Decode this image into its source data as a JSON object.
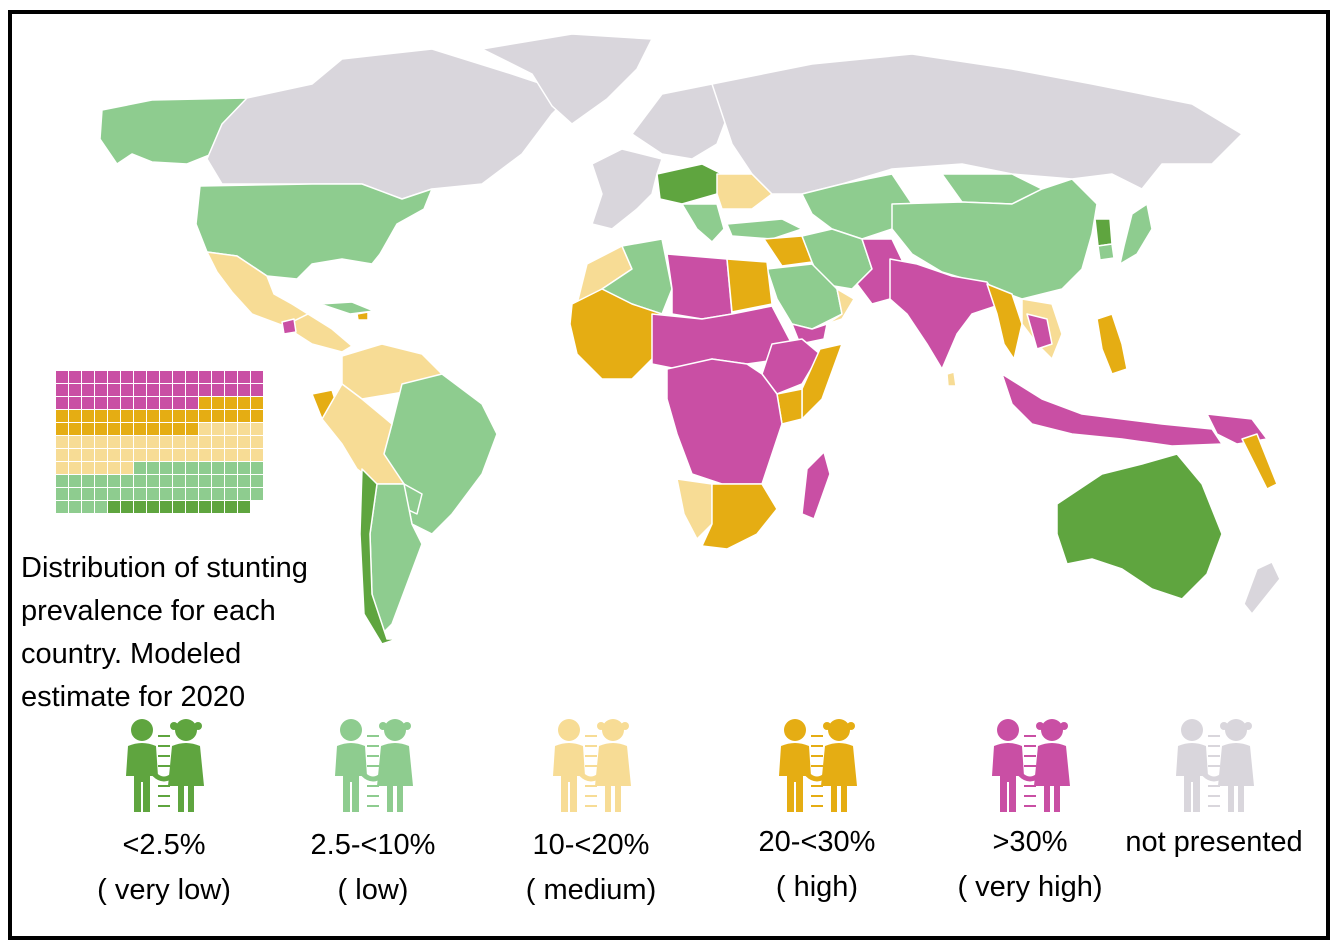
{
  "colors": {
    "very_low": "#5fa53f",
    "low": "#8ecc8f",
    "medium": "#f7dc95",
    "high": "#e5ad13",
    "very_high": "#c94fa4",
    "not_presented": "#d9d6dc",
    "ocean": "#ffffff"
  },
  "caption": {
    "line1": "Distribution of stunting",
    "line2": "prevalence for each",
    "line3": "country. Modeled",
    "line4": "estimate for 2020"
  },
  "legend": [
    {
      "range": "<2.5%",
      "level": "( very low)",
      "color": "#5fa53f",
      "icon": "children-icon"
    },
    {
      "range": "2.5-<10%",
      "level": "( low)",
      "color": "#8ecc8f",
      "icon": "children-icon"
    },
    {
      "range": "10-<20%",
      "level": "( medium)",
      "color": "#f7dc95",
      "icon": "children-icon"
    },
    {
      "range": "20-<30%",
      "level": "( high)",
      "color": "#e5ad13",
      "icon": "children-icon"
    },
    {
      "range": ">30%",
      "level": "( very high)",
      "color": "#c94fa4",
      "icon": "children-icon"
    },
    {
      "range": "not presented",
      "level": "",
      "color": "#d9d6dc",
      "icon": "children-icon"
    }
  ],
  "waffle": {
    "rows": [
      [
        "very_high",
        "very_high",
        "very_high",
        "very_high",
        "very_high",
        "very_high",
        "very_high",
        "very_high",
        "very_high",
        "very_high",
        "very_high",
        "very_high",
        "very_high",
        "very_high",
        "very_high",
        "very_high"
      ],
      [
        "very_high",
        "very_high",
        "very_high",
        "very_high",
        "very_high",
        "very_high",
        "very_high",
        "very_high",
        "very_high",
        "very_high",
        "very_high",
        "very_high",
        "very_high",
        "very_high",
        "very_high",
        "very_high"
      ],
      [
        "very_high",
        "very_high",
        "very_high",
        "very_high",
        "very_high",
        "very_high",
        "very_high",
        "very_high",
        "very_high",
        "very_high",
        "very_high",
        "high",
        "high",
        "high",
        "high",
        "high"
      ],
      [
        "high",
        "high",
        "high",
        "high",
        "high",
        "high",
        "high",
        "high",
        "high",
        "high",
        "high",
        "high",
        "high",
        "high",
        "high",
        "high"
      ],
      [
        "high",
        "high",
        "high",
        "high",
        "high",
        "high",
        "high",
        "high",
        "high",
        "high",
        "high",
        "medium",
        "medium",
        "medium",
        "medium",
        "medium"
      ],
      [
        "medium",
        "medium",
        "medium",
        "medium",
        "medium",
        "medium",
        "medium",
        "medium",
        "medium",
        "medium",
        "medium",
        "medium",
        "medium",
        "medium",
        "medium",
        "medium"
      ],
      [
        "medium",
        "medium",
        "medium",
        "medium",
        "medium",
        "medium",
        "medium",
        "medium",
        "medium",
        "medium",
        "medium",
        "medium",
        "medium",
        "medium",
        "medium",
        "medium"
      ],
      [
        "medium",
        "medium",
        "medium",
        "medium",
        "medium",
        "medium",
        "low",
        "low",
        "low",
        "low",
        "low",
        "low",
        "low",
        "low",
        "low",
        "low"
      ],
      [
        "low",
        "low",
        "low",
        "low",
        "low",
        "low",
        "low",
        "low",
        "low",
        "low",
        "low",
        "low",
        "low",
        "low",
        "low",
        "low"
      ],
      [
        "low",
        "low",
        "low",
        "low",
        "low",
        "low",
        "low",
        "low",
        "low",
        "low",
        "low",
        "low",
        "low",
        "low",
        "low",
        "low"
      ],
      [
        "low",
        "low",
        "low",
        "low",
        "very_low",
        "very_low",
        "very_low",
        "very_low",
        "very_low",
        "very_low",
        "very_low",
        "very_low",
        "very_low",
        "very_low",
        "very_low",
        ""
      ]
    ]
  },
  "regions": [
    {
      "name": "alaska",
      "level": "low"
    },
    {
      "name": "canada",
      "level": "not_presented"
    },
    {
      "name": "greenland",
      "level": "not_presented"
    },
    {
      "name": "usa",
      "level": "low"
    },
    {
      "name": "mexico",
      "level": "medium"
    },
    {
      "name": "central-america",
      "level": "medium"
    },
    {
      "name": "guatemala",
      "level": "very_high"
    },
    {
      "name": "cuba",
      "level": "low"
    },
    {
      "name": "haiti",
      "level": "high"
    },
    {
      "name": "south-america-north",
      "level": "medium"
    },
    {
      "name": "ecuador",
      "level": "high"
    },
    {
      "name": "brazil",
      "level": "low"
    },
    {
      "name": "peru-bolivia",
      "level": "medium"
    },
    {
      "name": "paraguay",
      "level": "low"
    },
    {
      "name": "argentina",
      "level": "low"
    },
    {
      "name": "chile",
      "level": "very_low"
    },
    {
      "name": "western-europe",
      "level": "not_presented"
    },
    {
      "name": "poland-germany",
      "level": "very_low"
    },
    {
      "name": "eastern-europe",
      "level": "medium"
    },
    {
      "name": "balkans",
      "level": "low"
    },
    {
      "name": "russia",
      "level": "not_presented"
    },
    {
      "name": "scandinavia",
      "level": "not_presented"
    },
    {
      "name": "turkey",
      "level": "low"
    },
    {
      "name": "central-asia",
      "level": "low"
    },
    {
      "name": "china",
      "level": "low"
    },
    {
      "name": "mongolia",
      "level": "low"
    },
    {
      "name": "korea",
      "level": "low"
    },
    {
      "name": "north-korea",
      "level": "very_low"
    },
    {
      "name": "japan",
      "level": "low"
    },
    {
      "name": "iran",
      "level": "low"
    },
    {
      "name": "saudi-arabia",
      "level": "low"
    },
    {
      "name": "iraq-syria",
      "level": "high"
    },
    {
      "name": "yemen",
      "level": "very_high"
    },
    {
      "name": "oman",
      "level": "medium"
    },
    {
      "name": "afghanistan-pakistan",
      "level": "very_high"
    },
    {
      "name": "india",
      "level": "very_high"
    },
    {
      "name": "myanmar-thailand",
      "level": "high"
    },
    {
      "name": "indochina",
      "level": "medium"
    },
    {
      "name": "laos-cambodia",
      "level": "very_high"
    },
    {
      "name": "philippines",
      "level": "high"
    },
    {
      "name": "indonesia",
      "level": "very_high"
    },
    {
      "name": "png",
      "level": "very_high"
    },
    {
      "name": "australia",
      "level": "very_low"
    },
    {
      "name": "new-zealand",
      "level": "not_presented"
    },
    {
      "name": "pacific-islands",
      "level": "high"
    },
    {
      "name": "morocco",
      "level": "medium"
    },
    {
      "name": "algeria",
      "level": "low"
    },
    {
      "name": "libya",
      "level": "very_high"
    },
    {
      "name": "egypt",
      "level": "high"
    },
    {
      "name": "west-africa",
      "level": "high"
    },
    {
      "name": "sahel",
      "level": "very_high"
    },
    {
      "name": "central-africa",
      "level": "very_high"
    },
    {
      "name": "east-africa",
      "level": "very_high"
    },
    {
      "name": "somalia",
      "level": "high"
    },
    {
      "name": "kenya",
      "level": "high"
    },
    {
      "name": "southern-africa",
      "level": "high"
    },
    {
      "name": "namibia",
      "level": "medium"
    },
    {
      "name": "madagascar",
      "level": "very_high"
    },
    {
      "name": "sri-lanka",
      "level": "medium"
    }
  ]
}
